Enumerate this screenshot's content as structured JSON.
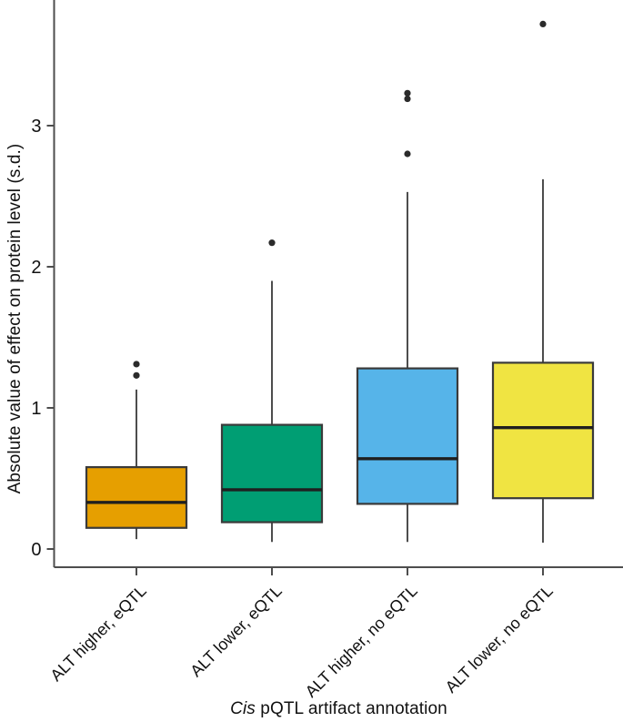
{
  "figure": {
    "background": "#ffffff"
  },
  "colors": {
    "axis": "#4d4d4d",
    "box_border": "#3a3a3a",
    "median_line": "#1f1f1f",
    "whisker": "#4d4d4d",
    "outlier_dot": "#2b2b2b",
    "text": "#111111"
  },
  "chart_data": {
    "type": "boxplot",
    "title": "",
    "xlabel_italic": "Cis",
    "xlabel_rest": " pQTL artifact annotation",
    "ylabel": "Absolute value of effect on protein level (s.d.)",
    "ylim": [
      -0.13,
      3.9
    ],
    "yticks": [
      0,
      1,
      2,
      3
    ],
    "grid": false,
    "legend": "none",
    "categories": [
      "ALT higher, eQTL",
      "ALT lower, eQTL",
      "ALT higher, no eQTL",
      "ALT lower, no eQTL"
    ],
    "series": [
      {
        "label": "ALT higher, eQTL",
        "color": "#E69F00",
        "whisker_low": 0.07,
        "q1": 0.15,
        "median": 0.33,
        "q3": 0.58,
        "whisker_high": 1.13,
        "outliers": [
          1.23,
          1.31
        ]
      },
      {
        "label": "ALT lower, eQTL",
        "color": "#009E73",
        "whisker_low": 0.05,
        "q1": 0.19,
        "median": 0.42,
        "q3": 0.88,
        "whisker_high": 1.9,
        "outliers": [
          2.17
        ]
      },
      {
        "label": "ALT higher, no eQTL",
        "color": "#56B4E9",
        "whisker_low": 0.05,
        "q1": 0.32,
        "median": 0.64,
        "q3": 1.28,
        "whisker_high": 2.53,
        "outliers": [
          2.8,
          3.19,
          3.23
        ]
      },
      {
        "label": "ALT lower, no eQTL",
        "color": "#F0E442",
        "whisker_low": 0.045,
        "q1": 0.36,
        "median": 0.86,
        "q3": 1.32,
        "whisker_high": 2.62,
        "outliers": [
          3.72
        ]
      }
    ]
  }
}
